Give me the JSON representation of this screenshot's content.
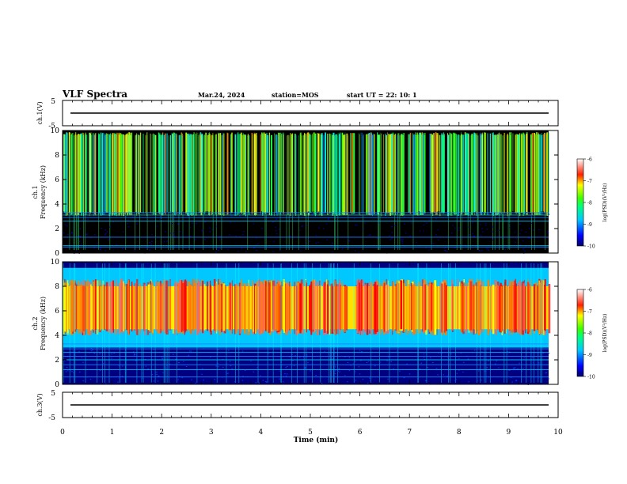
{
  "header": {
    "title": "VLF Spectra",
    "date": "Mar.24, 2024",
    "station": "station=MOS",
    "start": "start UT =  22: 10: 1"
  },
  "chart_data": [
    {
      "type": "line",
      "name": "ch1-waveform",
      "ylabel": "ch.1(V)",
      "ylim": [
        -5,
        5
      ],
      "yticks": [
        "5",
        "-5"
      ],
      "trace_level": 0
    },
    {
      "type": "heatmap",
      "name": "ch1-spectrogram",
      "ylabel_lines": [
        "ch.1",
        "Frequency (kHz)"
      ],
      "ylim": [
        0,
        10
      ],
      "yticks": [
        "0",
        "2",
        "4",
        "6",
        "8",
        "10"
      ],
      "xlim": [
        0,
        10
      ],
      "colorbar": {
        "label": "log(PSD)(V²/Hz)",
        "range": [
          -10,
          -6
        ],
        "ticks": [
          "-6",
          "-7",
          "-8",
          "-9",
          "-10"
        ]
      },
      "noise_band_khz": [
        3.4,
        9.6
      ],
      "lines_khz": [
        0.5,
        0.6,
        1.3,
        2.6,
        2.9,
        3.1,
        3.3
      ]
    },
    {
      "type": "heatmap",
      "name": "ch2-spectrogram",
      "ylabel_lines": [
        "ch.2",
        "Frequency (kHz)"
      ],
      "ylim": [
        0,
        10
      ],
      "yticks": [
        "0",
        "2",
        "4",
        "6",
        "8",
        "10"
      ],
      "xlim": [
        0,
        10
      ],
      "colorbar": {
        "label": "log(PSD)(V²/Hz)",
        "range": [
          -10,
          -6
        ],
        "ticks": [
          "-6",
          "-7",
          "-8",
          "-9",
          "-10"
        ]
      },
      "noise_band_khz": [
        3.0,
        9.5
      ],
      "peak_band_khz": [
        4.5,
        8.0
      ],
      "lines_khz": [
        0.6,
        1.2,
        1.6,
        2.0,
        2.3,
        2.6,
        2.9,
        3.1,
        3.3
      ]
    },
    {
      "type": "line",
      "name": "ch3-waveform",
      "ylabel": "ch.3(V)",
      "ylim": [
        -5,
        5
      ],
      "yticks": [
        "5",
        "-5"
      ],
      "trace_level": 0,
      "xlabel": "Time (min)",
      "xlim": [
        0,
        10
      ],
      "xticks": [
        "0",
        "1",
        "2",
        "3",
        "4",
        "5",
        "6",
        "7",
        "8",
        "9",
        "10"
      ]
    }
  ]
}
